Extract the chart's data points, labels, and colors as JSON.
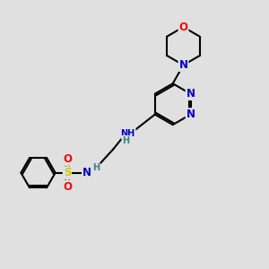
{
  "bg_color": "#e0e0e0",
  "atom_colors": {
    "C": "#000000",
    "N": "#0000cc",
    "O": "#ff0000",
    "S": "#cccc00",
    "H": "#408080"
  },
  "bond_color": "#000000",
  "bond_width": 1.5,
  "figsize": [
    3.0,
    3.0
  ],
  "dpi": 100
}
